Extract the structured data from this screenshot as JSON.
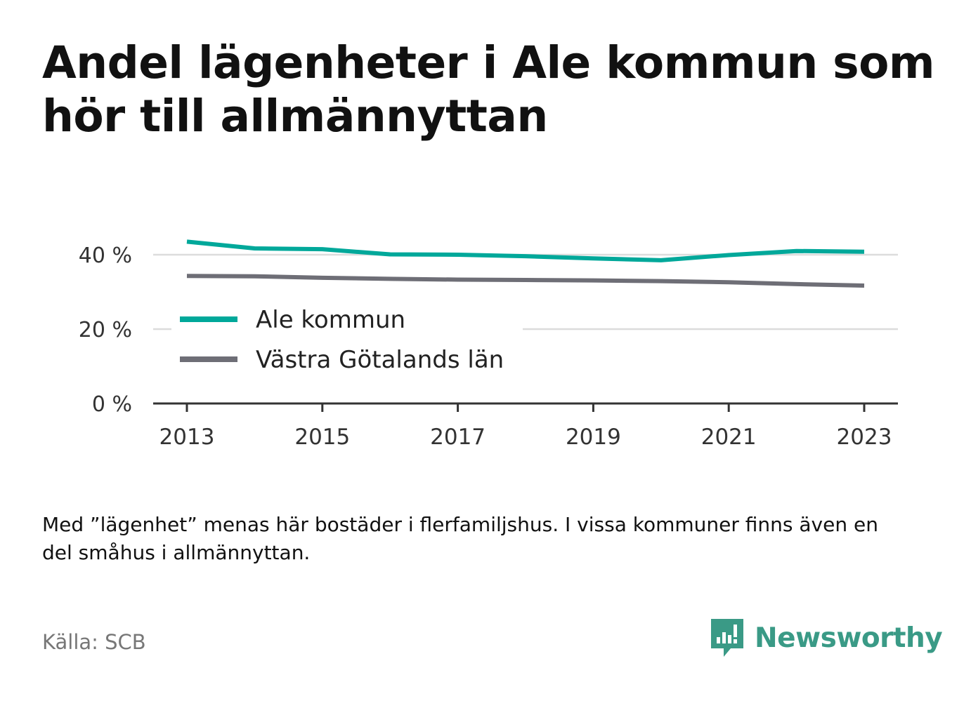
{
  "title": "Andel lägenheter i Ale kommun som hör till allmännyttan",
  "note": "Med ”lägenhet” menas här bostäder i flerfamiljshus. I vissa kommuner finns även en del småhus i allmännyttan.",
  "source": "Källa: SCB",
  "brand": {
    "name": "Newsworthy",
    "color": "#3a9a86",
    "icon": "newsworthy-logo-icon"
  },
  "chart_data": {
    "type": "line",
    "title": "Andel lägenheter i Ale kommun som hör till allmännyttan",
    "xlabel": "",
    "ylabel": "",
    "x": [
      2013,
      2014,
      2015,
      2016,
      2017,
      2018,
      2019,
      2020,
      2021,
      2022,
      2023
    ],
    "x_ticks": [
      2013,
      2015,
      2017,
      2019,
      2021,
      2023
    ],
    "x_tick_labels": [
      "2013",
      "2015",
      "2017",
      "2019",
      "2021",
      "2023"
    ],
    "y_ticks": [
      0,
      20,
      40
    ],
    "y_tick_labels": [
      "0 %",
      "20 %",
      "40 %"
    ],
    "ylim": [
      0,
      50
    ],
    "xlim": [
      2012.5,
      2023.5
    ],
    "grid": true,
    "legend_position": "center-left",
    "series": [
      {
        "name": "Ale kommun",
        "color": "#00a89a",
        "values": [
          43.5,
          41.7,
          41.5,
          40.1,
          40.0,
          39.6,
          39.0,
          38.5,
          39.9,
          41.0,
          40.8
        ]
      },
      {
        "name": "Västra Götalands län",
        "color": "#6e6e76",
        "values": [
          34.3,
          34.2,
          33.8,
          33.5,
          33.3,
          33.2,
          33.1,
          32.9,
          32.6,
          32.1,
          31.7
        ]
      }
    ]
  }
}
